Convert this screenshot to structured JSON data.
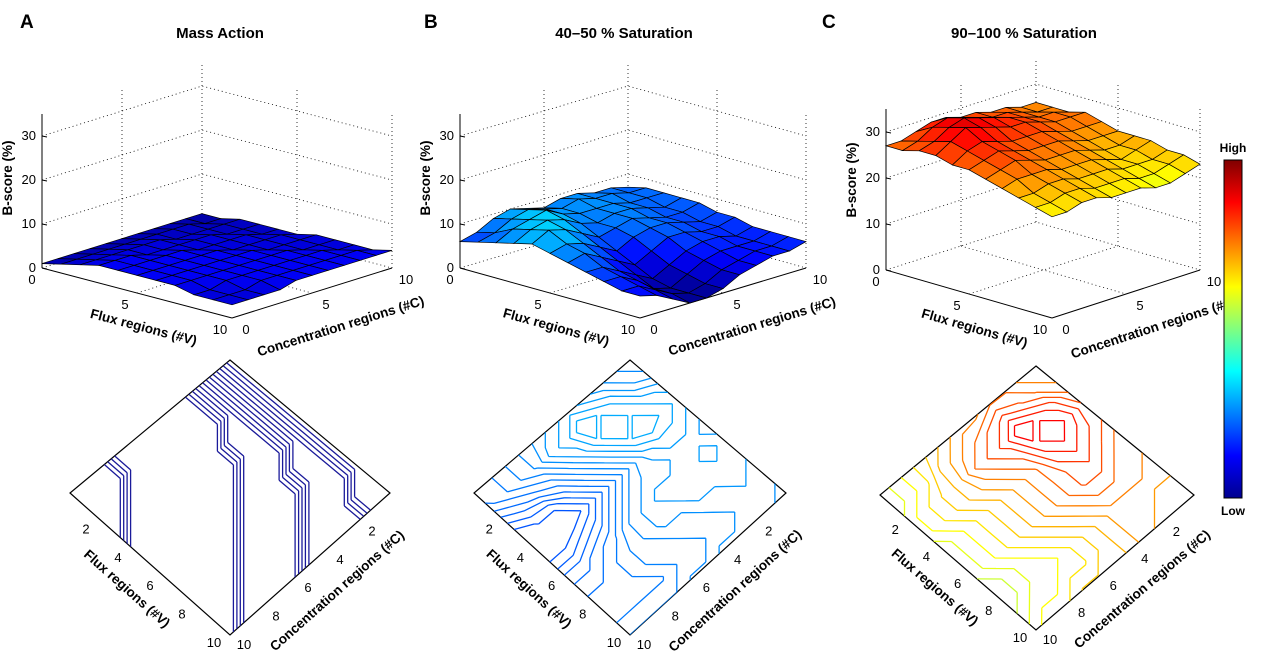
{
  "figure": {
    "colorbar": {
      "high_label": "High",
      "low_label": "Low",
      "colormap": [
        "#00008f",
        "#0000ff",
        "#0080ff",
        "#00ffff",
        "#80ff80",
        "#ffff00",
        "#ff8000",
        "#ff0000",
        "#800000"
      ]
    }
  },
  "chart_data": [
    {
      "panel": "A",
      "type": "surface",
      "title": "Mass Action",
      "zlabel": "B-score (%)",
      "zticks": [
        0,
        10,
        20,
        30
      ],
      "zlim": [
        0,
        35
      ],
      "xlabel": "Concentration regions (#C)",
      "xticks": [
        0,
        5,
        10
      ],
      "ylabel": "Flux regions (#V)",
      "yticks": [
        0,
        5,
        10
      ],
      "grid": true,
      "surface_heights": [
        [
          1,
          1,
          1,
          1,
          1,
          1,
          1,
          1,
          1,
          1,
          1
        ],
        [
          2,
          2,
          2,
          2,
          2,
          2,
          2,
          2,
          2,
          1,
          1
        ],
        [
          3,
          3,
          3,
          3,
          3,
          3,
          2,
          2,
          2,
          2,
          2
        ],
        [
          4,
          4,
          4,
          3,
          3,
          3,
          3,
          3,
          2,
          2,
          2
        ],
        [
          4,
          4,
          4,
          4,
          4,
          3,
          3,
          3,
          3,
          2,
          2
        ],
        [
          4,
          4,
          4,
          4,
          4,
          4,
          3,
          3,
          3,
          3,
          2
        ],
        [
          4,
          4,
          4,
          4,
          4,
          4,
          4,
          3,
          3,
          3,
          3
        ],
        [
          4,
          4,
          4,
          4,
          4,
          4,
          4,
          4,
          3,
          3,
          3
        ],
        [
          3,
          3,
          4,
          4,
          4,
          4,
          4,
          4,
          4,
          3,
          3
        ],
        [
          3,
          3,
          3,
          4,
          4,
          4,
          4,
          4,
          4,
          4,
          3
        ],
        [
          3,
          3,
          3,
          3,
          4,
          4,
          4,
          4,
          4,
          4,
          4
        ]
      ],
      "contour_plot": {
        "type": "contour",
        "xlabel": "Concentration regions (#C)",
        "ylabel": "Flux regions (#V)",
        "xticks": [
          2,
          4,
          6,
          8,
          10
        ],
        "yticks": [
          2,
          4,
          6,
          8,
          10
        ]
      }
    },
    {
      "panel": "B",
      "type": "surface",
      "title": "40–50 % Saturation",
      "zlabel": "B-score (%)",
      "zticks": [
        0,
        10,
        20,
        30
      ],
      "zlim": [
        0,
        35
      ],
      "xlabel": "Concentration regions (#C)",
      "xticks": [
        0,
        5,
        10
      ],
      "ylabel": "Flux regions (#V)",
      "yticks": [
        0,
        5,
        10
      ],
      "grid": true,
      "surface_heights": [
        [
          6,
          7,
          9,
          10,
          9,
          8,
          9,
          9,
          8,
          8,
          7
        ],
        [
          7,
          8,
          10,
          11,
          10,
          9,
          10,
          9,
          9,
          8,
          8
        ],
        [
          8,
          10,
          11,
          12,
          10,
          9,
          9,
          9,
          8,
          8,
          8
        ],
        [
          9,
          11,
          12,
          11,
          9,
          8,
          9,
          9,
          8,
          7,
          8
        ],
        [
          10,
          12,
          11,
          9,
          7,
          8,
          9,
          8,
          7,
          7,
          8
        ],
        [
          9,
          10,
          9,
          7,
          5,
          7,
          8,
          8,
          7,
          6,
          7
        ],
        [
          8,
          9,
          7,
          5,
          3,
          5,
          7,
          7,
          6,
          6,
          7
        ],
        [
          7,
          7,
          5,
          3,
          1,
          3,
          5,
          6,
          6,
          5,
          6
        ],
        [
          6,
          6,
          4,
          1,
          0,
          2,
          4,
          5,
          5,
          5,
          6
        ],
        [
          5,
          5,
          3,
          1,
          0,
          1,
          3,
          4,
          5,
          5,
          6
        ],
        [
          5,
          4,
          2,
          0,
          0,
          1,
          3,
          4,
          5,
          5,
          6
        ]
      ],
      "contour_plot": {
        "type": "contour",
        "xlabel": "Concentration regions (#C)",
        "ylabel": "Flux regions (#V)",
        "xticks": [
          2,
          4,
          6,
          8,
          10
        ],
        "yticks": [
          2,
          4,
          6,
          8,
          10
        ]
      }
    },
    {
      "panel": "C",
      "type": "surface",
      "title": "90–100 % Saturation",
      "zlabel": "B-score (%)",
      "zticks": [
        0,
        10,
        20,
        30
      ],
      "zlim": [
        0,
        35
      ],
      "xlabel": "Concentration regions (#C)",
      "xticks": [
        0,
        5,
        10
      ],
      "ylabel": "Flux regions (#V)",
      "yticks": [
        0,
        5,
        10
      ],
      "grid": true,
      "surface_heights": [
        [
          27,
          27,
          28,
          29,
          29,
          28,
          28,
          27,
          27,
          26,
          26
        ],
        [
          27,
          28,
          30,
          31,
          30,
          29,
          28,
          28,
          27,
          26,
          26
        ],
        [
          28,
          29,
          31,
          32,
          31,
          30,
          29,
          28,
          27,
          27,
          26
        ],
        [
          28,
          30,
          32,
          31,
          30,
          29,
          29,
          28,
          27,
          27,
          27
        ],
        [
          27,
          29,
          30,
          29,
          28,
          28,
          28,
          27,
          26,
          26,
          26
        ],
        [
          27,
          28,
          29,
          28,
          27,
          27,
          27,
          26,
          25,
          25,
          25
        ],
        [
          26,
          27,
          28,
          27,
          26,
          26,
          26,
          25,
          24,
          24,
          25
        ],
        [
          25,
          26,
          26,
          26,
          25,
          25,
          25,
          24,
          23,
          24,
          25
        ],
        [
          24,
          24,
          25,
          25,
          24,
          24,
          24,
          23,
          23,
          23,
          24
        ],
        [
          23,
          23,
          24,
          24,
          23,
          23,
          23,
          22,
          22,
          23,
          24
        ],
        [
          22,
          22,
          23,
          23,
          22,
          22,
          22,
          21,
          21,
          22,
          23
        ]
      ],
      "contour_plot": {
        "type": "contour",
        "xlabel": "Concentration regions (#C)",
        "ylabel": "Flux regions (#V)",
        "xticks": [
          2,
          4,
          6,
          8,
          10
        ],
        "yticks": [
          2,
          4,
          6,
          8,
          10
        ]
      }
    }
  ]
}
